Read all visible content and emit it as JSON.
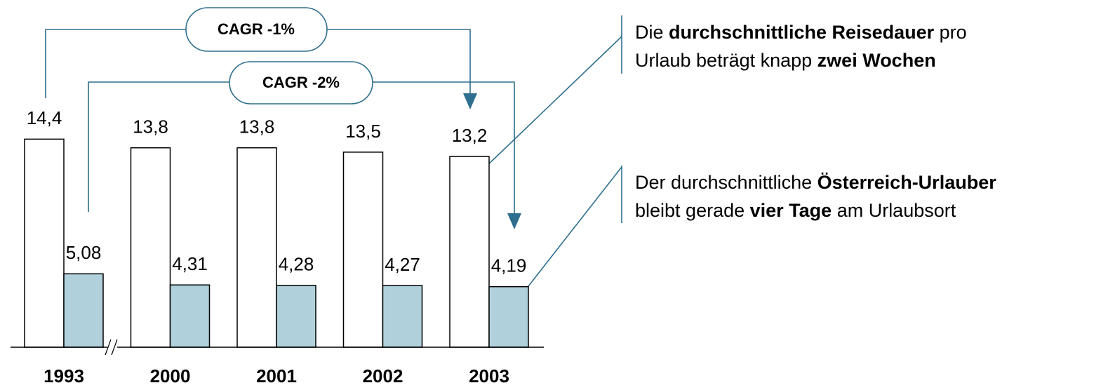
{
  "chart_data": {
    "type": "bar",
    "categories": [
      "1993",
      "2000",
      "2001",
      "2002",
      "2003"
    ],
    "series": [
      {
        "color": "#ffffff",
        "values": [
          14.4,
          13.8,
          13.8,
          13.5,
          13.2
        ],
        "value_labels": [
          "14,4",
          "13,8",
          "13,8",
          "13,5",
          "13,2"
        ]
      },
      {
        "color": "#b0d0dc",
        "values": [
          5.08,
          4.31,
          4.28,
          4.27,
          4.19
        ],
        "value_labels": [
          "5,08",
          "4,31",
          "4,28",
          "4,27",
          "4,19"
        ]
      }
    ],
    "annotations": [
      "CAGR -1%",
      "CAGR -2%"
    ],
    "notes": [
      [
        [
          {
            "text": "Die "
          },
          {
            "text": "durchschnittliche Reisedauer",
            "bold": true
          },
          {
            "text": " pro"
          }
        ],
        [
          {
            "text": "Urlaub beträgt knapp "
          },
          {
            "text": "zwei Wochen",
            "bold": true
          }
        ]
      ],
      [
        [
          {
            "text": "Der durchschnittliche "
          },
          {
            "text": "Österreich-Urlauber",
            "bold": true
          }
        ],
        [
          {
            "text": "bleibt gerade "
          },
          {
            "text": "vier Tage",
            "bold": true
          },
          {
            "text": " am Urlaubsort"
          }
        ]
      ]
    ]
  }
}
